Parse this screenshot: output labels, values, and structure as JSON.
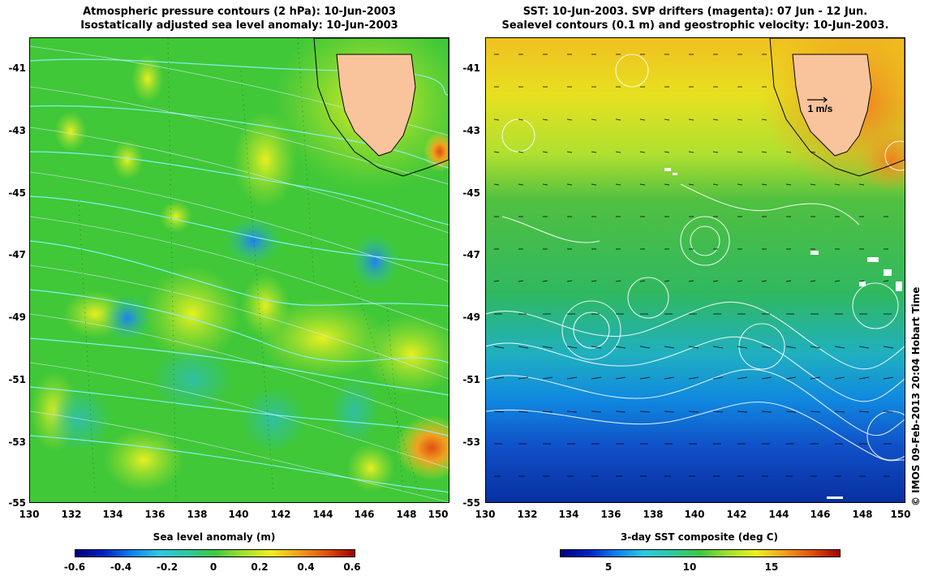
{
  "left_map": {
    "title_line1": "Atmospheric pressure contours (2 hPa): 10-Jun-2003",
    "title_line2": "Isostatically adjusted sea level anomaly: 10-Jun-2003",
    "colorbar_title": "Sea level anomaly (m)",
    "colorbar_ticks": [
      "-0.6",
      "-0.4",
      "-0.2",
      "0",
      "0.2",
      "0.4",
      "0.6"
    ]
  },
  "right_map": {
    "title_line1": "SST: 10-Jun-2003. SVP drifters (magenta): 07 Jun - 12 Jun.",
    "title_line2": "Sealevel contours (0.1 m) and geostrophic velocity: 10-Jun-2003.",
    "colorbar_title": "3-day SST composite (deg C)",
    "colorbar_ticks": [
      "5",
      "10",
      "15"
    ],
    "velocity_scale_label": "1 m/s"
  },
  "y_axis_labels": [
    "-41",
    "-43",
    "-45",
    "-47",
    "-49",
    "-51",
    "-53",
    "-55"
  ],
  "x_axis_labels": [
    "130",
    "132",
    "134",
    "136",
    "138",
    "140",
    "142",
    "144",
    "146",
    "148",
    "150"
  ],
  "credit": "© IMOS 09-Feb-2013 20:04 Hobart Time",
  "colors": {
    "land": "#f9c39b",
    "ocean_mid": "#3cc83c",
    "warm": "#f0a020",
    "cold": "#1060d0",
    "contour_left": "#7fffff",
    "contour_right": "#ffffff"
  }
}
